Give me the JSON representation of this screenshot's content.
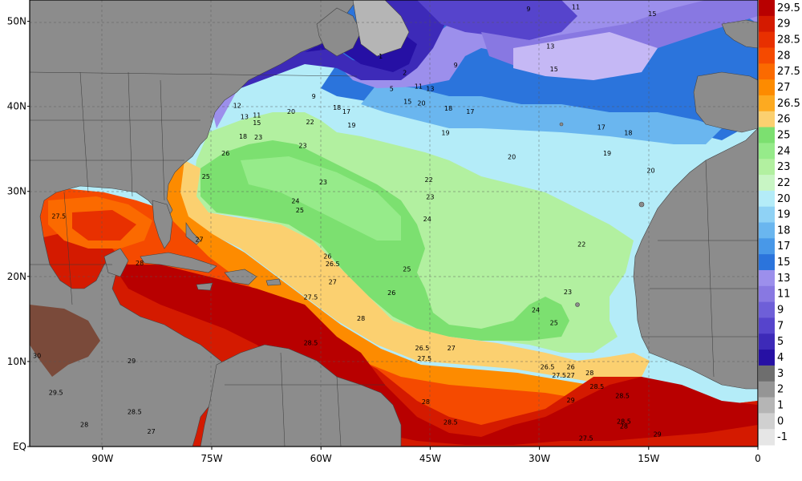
{
  "map": {
    "lat_labels": [
      "50N",
      "40N",
      "30N",
      "20N",
      "10N",
      "EQ"
    ],
    "lon_labels": [
      "90W",
      "75W",
      "60W",
      "45W",
      "30W",
      "15W",
      "0"
    ],
    "lat_values": [
      50,
      40,
      30,
      20,
      10,
      0
    ],
    "lon_values": [
      -90,
      -75,
      -60,
      -45,
      -30,
      -15,
      0
    ],
    "extent": {
      "lon_min": -100,
      "lon_max": 0,
      "lat_min": 0,
      "lat_max": 52.5
    },
    "land_color": "#8c8c8c",
    "border_color": "#444444"
  },
  "colorbar": {
    "labels": [
      "29.5",
      "29",
      "28.5",
      "28",
      "27.5",
      "27",
      "26.5",
      "26",
      "25",
      "24",
      "23",
      "22",
      "20",
      "19",
      "18",
      "17",
      "15",
      "13",
      "11",
      "9",
      "7",
      "5",
      "4",
      "3",
      "2",
      "1",
      "0",
      "-1"
    ],
    "colors": [
      "#b80000",
      "#d41a00",
      "#e83000",
      "#f54a00",
      "#fb6a00",
      "#fd8b00",
      "#fdaa20",
      "#fbd070",
      "#7ce070",
      "#96eb8a",
      "#b2f0a0",
      "#c8f5c4",
      "#b4ecf8",
      "#8fd2f5",
      "#6ab6ef",
      "#4898e8",
      "#2b74dc",
      "#9c8fec",
      "#8878e2",
      "#6e5fd8",
      "#5644cc",
      "#3d2ab8",
      "#2610a4",
      "#6e6e6e",
      "#959595",
      "#b5b5b5",
      "#d0d0d0",
      "#e6e6e6"
    ]
  },
  "isotherm_labels": [
    {
      "t": "9",
      "lon": -31.5,
      "lat": 51.2
    },
    {
      "t": "11",
      "lon": -25,
      "lat": 51.4
    },
    {
      "t": "15",
      "lon": -14.5,
      "lat": 50.6
    },
    {
      "t": "13",
      "lon": -28.5,
      "lat": 46.8
    },
    {
      "t": "9",
      "lon": -41.5,
      "lat": 44.6
    },
    {
      "t": "15",
      "lon": -28,
      "lat": 44.1
    },
    {
      "t": "1",
      "lon": -51.8,
      "lat": 45.6
    },
    {
      "t": "2",
      "lon": -48.5,
      "lat": 43.7
    },
    {
      "t": "5",
      "lon": -50.3,
      "lat": 41.8
    },
    {
      "t": "11",
      "lon": -46.6,
      "lat": 42.1
    },
    {
      "t": "13",
      "lon": -45,
      "lat": 41.8
    },
    {
      "t": "9",
      "lon": -61,
      "lat": 40.9
    },
    {
      "t": "12",
      "lon": -71.5,
      "lat": 39.8
    },
    {
      "t": "11",
      "lon": -68.8,
      "lat": 38.7
    },
    {
      "t": "13",
      "lon": -70.5,
      "lat": 38.5
    },
    {
      "t": "15",
      "lon": -68.8,
      "lat": 37.8
    },
    {
      "t": "20",
      "lon": -64.1,
      "lat": 39.1
    },
    {
      "t": "18",
      "lon": -57.8,
      "lat": 39.6
    },
    {
      "t": "17",
      "lon": -56.5,
      "lat": 39.1
    },
    {
      "t": "15",
      "lon": -48.1,
      "lat": 40.3
    },
    {
      "t": "20",
      "lon": -46.2,
      "lat": 40.1
    },
    {
      "t": "18",
      "lon": -42.5,
      "lat": 39.5
    },
    {
      "t": "17",
      "lon": -39.5,
      "lat": 39.1
    },
    {
      "t": "22",
      "lon": -61.5,
      "lat": 37.9
    },
    {
      "t": "19",
      "lon": -55.8,
      "lat": 37.5
    },
    {
      "t": "19",
      "lon": -42.9,
      "lat": 36.6
    },
    {
      "t": "17",
      "lon": -21.5,
      "lat": 37.3
    },
    {
      "t": "18",
      "lon": -17.8,
      "lat": 36.6
    },
    {
      "t": "18",
      "lon": -70.7,
      "lat": 36.2
    },
    {
      "t": "23",
      "lon": -68.6,
      "lat": 36.1
    },
    {
      "t": "23",
      "lon": -62.5,
      "lat": 35.1
    },
    {
      "t": "19",
      "lon": -20.7,
      "lat": 34.2
    },
    {
      "t": "26",
      "lon": -73.1,
      "lat": 34.2
    },
    {
      "t": "20",
      "lon": -33.8,
      "lat": 33.8
    },
    {
      "t": "20",
      "lon": -14.7,
      "lat": 32.2
    },
    {
      "t": "25",
      "lon": -75.8,
      "lat": 31.5
    },
    {
      "t": "22",
      "lon": -45.2,
      "lat": 31.1
    },
    {
      "t": "23",
      "lon": -59.7,
      "lat": 30.8
    },
    {
      "t": "23",
      "lon": -45,
      "lat": 29.1
    },
    {
      "t": "24",
      "lon": -63.5,
      "lat": 28.6
    },
    {
      "t": "25",
      "lon": -62.9,
      "lat": 27.5
    },
    {
      "t": "27.5",
      "lon": -96,
      "lat": 26.8
    },
    {
      "t": "24",
      "lon": -45.4,
      "lat": 26.5
    },
    {
      "t": "27",
      "lon": -76.7,
      "lat": 24.1
    },
    {
      "t": "22",
      "lon": -24.2,
      "lat": 23.5
    },
    {
      "t": "26",
      "lon": -59.1,
      "lat": 22.1
    },
    {
      "t": "26.5",
      "lon": -58.4,
      "lat": 21.2
    },
    {
      "t": "28",
      "lon": -84.9,
      "lat": 21.3
    },
    {
      "t": "25",
      "lon": -48.2,
      "lat": 20.6
    },
    {
      "t": "27",
      "lon": -58.4,
      "lat": 19.1
    },
    {
      "t": "26",
      "lon": -50.3,
      "lat": 17.8
    },
    {
      "t": "23",
      "lon": -26.1,
      "lat": 17.9
    },
    {
      "t": "27.5",
      "lon": -61.4,
      "lat": 17.3
    },
    {
      "t": "24",
      "lon": -30.5,
      "lat": 15.8
    },
    {
      "t": "28",
      "lon": -54.5,
      "lat": 14.8
    },
    {
      "t": "25",
      "lon": -28,
      "lat": 14.3
    },
    {
      "t": "28.5",
      "lon": -61.4,
      "lat": 11.9
    },
    {
      "t": "26.5",
      "lon": -46.1,
      "lat": 11.3
    },
    {
      "t": "27",
      "lon": -42.1,
      "lat": 11.3
    },
    {
      "t": "27.5",
      "lon": -45.8,
      "lat": 10.1
    },
    {
      "t": "30",
      "lon": -99,
      "lat": 10.4
    },
    {
      "t": "29",
      "lon": -86,
      "lat": 9.8
    },
    {
      "t": "26.5",
      "lon": -28.9,
      "lat": 9.1
    },
    {
      "t": "26",
      "lon": -25.7,
      "lat": 9.1
    },
    {
      "t": "28",
      "lon": -23.1,
      "lat": 8.4
    },
    {
      "t": "27.5",
      "lon": -27.3,
      "lat": 8.1
    },
    {
      "t": "27",
      "lon": -25.7,
      "lat": 8.1
    },
    {
      "t": "28.5",
      "lon": -22.1,
      "lat": 6.8
    },
    {
      "t": "29.5",
      "lon": -96.4,
      "lat": 6.1
    },
    {
      "t": "28.5",
      "lon": -18.6,
      "lat": 5.7
    },
    {
      "t": "29",
      "lon": -25.7,
      "lat": 5.2
    },
    {
      "t": "28",
      "lon": -45.6,
      "lat": 5
    },
    {
      "t": "28.5",
      "lon": -85.6,
      "lat": 3.8
    },
    {
      "t": "28.5",
      "lon": -18.4,
      "lat": 2.7
    },
    {
      "t": "28.5",
      "lon": -42.2,
      "lat": 2.6
    },
    {
      "t": "28",
      "lon": -92.5,
      "lat": 2.3
    },
    {
      "t": "28",
      "lon": -18.4,
      "lat": 2.1
    },
    {
      "t": "27",
      "lon": -83.3,
      "lat": 1.5
    },
    {
      "t": "29",
      "lon": -13.8,
      "lat": 1.2
    },
    {
      "t": "27.5",
      "lon": -23.6,
      "lat": 0.7
    }
  ]
}
